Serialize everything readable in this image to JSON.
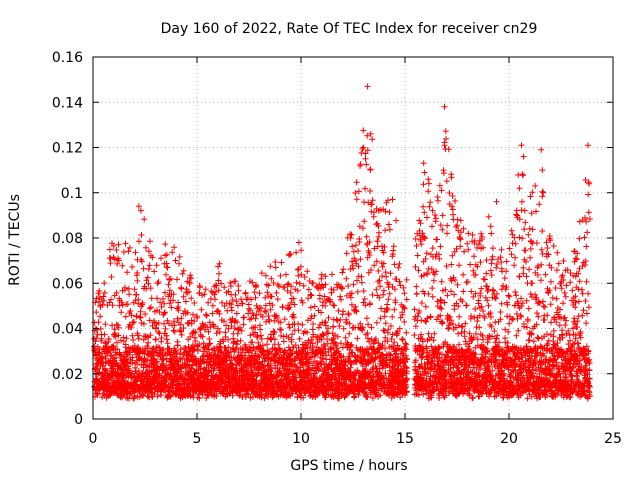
{
  "chart_data": {
    "type": "scatter",
    "title": "Day 160 of 2022, Rate Of TEC Index for receiver cn29",
    "xlabel": "GPS time / hours",
    "ylabel": "ROTI / TECUs",
    "xlim": [
      0,
      25
    ],
    "ylim": [
      0,
      0.16
    ],
    "xticks": [
      0,
      5,
      10,
      15,
      20,
      25
    ],
    "yticks": [
      0,
      0.02,
      0.04,
      0.06,
      0.08,
      0.1,
      0.12,
      0.14,
      0.16
    ],
    "xtick_labels": [
      "0",
      "5",
      "10",
      "15",
      "20",
      "25"
    ],
    "ytick_labels": [
      "0",
      "0.02",
      "0.04",
      "0.06",
      "0.08",
      "0.1",
      "0.12",
      "0.14",
      "0.16"
    ],
    "grid": true,
    "marker": "+",
    "color": "#ff0000",
    "series": [
      {
        "name": "ROTI",
        "gaps": [
          [
            15.1,
            15.45
          ]
        ],
        "baseline_mean": 0.022,
        "upper_envelope": [
          [
            0.0,
            0.055
          ],
          [
            0.5,
            0.06
          ],
          [
            1.0,
            0.085
          ],
          [
            1.5,
            0.08
          ],
          [
            2.0,
            0.075
          ],
          [
            2.3,
            0.094
          ],
          [
            3.0,
            0.07
          ],
          [
            3.7,
            0.082
          ],
          [
            4.5,
            0.065
          ],
          [
            5.5,
            0.06
          ],
          [
            6.0,
            0.07
          ],
          [
            7.0,
            0.06
          ],
          [
            7.5,
            0.062
          ],
          [
            8.0,
            0.064
          ],
          [
            9.0,
            0.072
          ],
          [
            10.0,
            0.078
          ],
          [
            10.5,
            0.06
          ],
          [
            11.0,
            0.065
          ],
          [
            12.0,
            0.065
          ],
          [
            12.5,
            0.1
          ],
          [
            12.9,
            0.12
          ],
          [
            13.2,
            0.147
          ],
          [
            13.6,
            0.12
          ],
          [
            14.0,
            0.1
          ],
          [
            14.5,
            0.095
          ],
          [
            15.0,
            0.06
          ],
          [
            15.5,
            0.08
          ],
          [
            16.0,
            0.113
          ],
          [
            16.5,
            0.09
          ],
          [
            16.9,
            0.138
          ],
          [
            17.5,
            0.09
          ],
          [
            18.5,
            0.08
          ],
          [
            19.0,
            0.095
          ],
          [
            19.5,
            0.08
          ],
          [
            20.2,
            0.09
          ],
          [
            20.6,
            0.12
          ],
          [
            21.0,
            0.1
          ],
          [
            21.5,
            0.118
          ],
          [
            22.0,
            0.08
          ],
          [
            22.5,
            0.07
          ],
          [
            23.0,
            0.08
          ],
          [
            23.5,
            0.09
          ],
          [
            23.8,
            0.121
          ],
          [
            24.0,
            0.06
          ]
        ],
        "peak_points": [
          [
            2.2,
            0.094
          ],
          [
            9.9,
            0.078
          ],
          [
            13.2,
            0.147
          ],
          [
            13.35,
            0.126
          ],
          [
            13.0,
            0.12
          ],
          [
            13.1,
            0.115
          ],
          [
            14.4,
            0.097
          ],
          [
            15.9,
            0.113
          ],
          [
            16.9,
            0.138
          ],
          [
            16.9,
            0.121
          ],
          [
            16.85,
            0.11
          ],
          [
            19.4,
            0.096
          ],
          [
            20.6,
            0.121
          ],
          [
            20.7,
            0.116
          ],
          [
            21.55,
            0.119
          ],
          [
            21.6,
            0.11
          ],
          [
            21.65,
            0.1
          ],
          [
            23.8,
            0.121
          ],
          [
            23.85,
            0.104
          ],
          [
            20.5,
            0.102
          ]
        ]
      }
    ]
  }
}
